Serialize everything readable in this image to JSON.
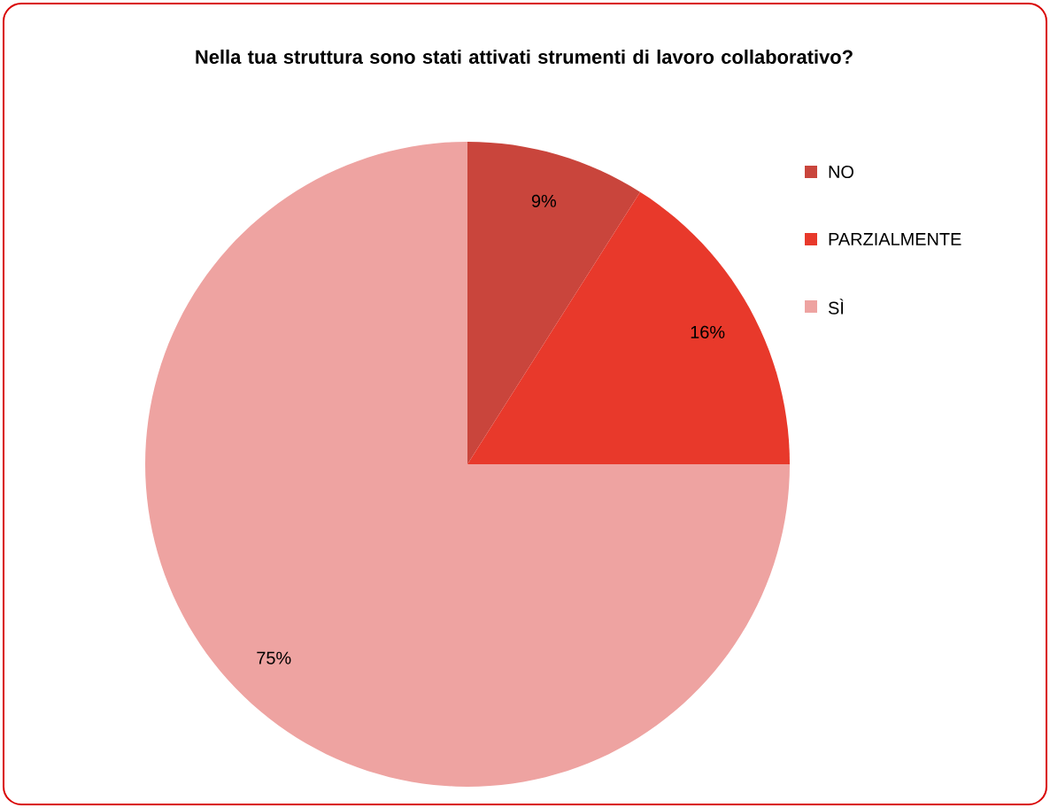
{
  "chart_data": {
    "type": "pie",
    "title": "Nella tua struttura sono stati attivati strumenti di lavoro collaborativo?",
    "categories": [
      "NO",
      "PARZIALMENTE",
      "SÌ"
    ],
    "values": [
      9,
      16,
      75
    ],
    "value_labels": [
      "9%",
      "16%",
      "75%"
    ],
    "colors": [
      "#c9453c",
      "#e8392b",
      "#eea3a1"
    ],
    "legend": "right"
  }
}
